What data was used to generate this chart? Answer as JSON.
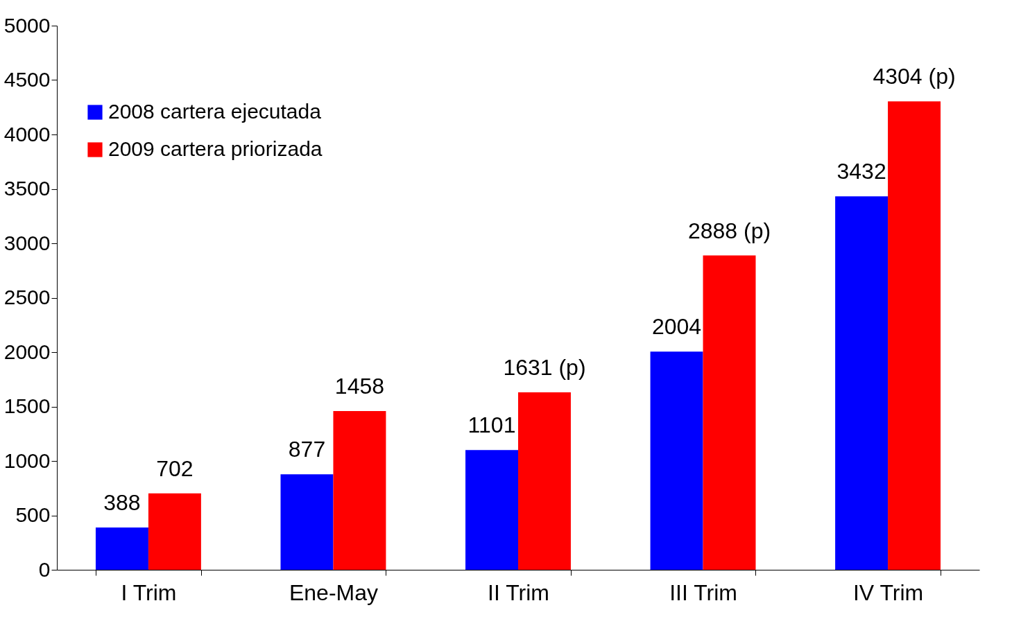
{
  "chart_data": {
    "type": "bar",
    "categories": [
      "I Trim",
      "Ene-May",
      "II Trim",
      "III Trim",
      "IV Trim"
    ],
    "series": [
      {
        "name": "2008 cartera ejecutada",
        "color": "#0000ff",
        "values": [
          388,
          877,
          1101,
          2004,
          3432
        ],
        "value_labels": [
          "388",
          "877",
          "1101",
          "2004",
          "3432"
        ]
      },
      {
        "name": "2009 cartera priorizada",
        "color": "#ff0000",
        "values": [
          702,
          1458,
          1631,
          2888,
          4304
        ],
        "value_labels": [
          "702",
          "1458",
          "1631 (p)",
          "2888  (p)",
          "4304 (p)"
        ]
      }
    ],
    "ylim": [
      0,
      5000
    ],
    "yticks": [
      0,
      500,
      1000,
      1500,
      2000,
      2500,
      3000,
      3500,
      4000,
      4500,
      5000
    ],
    "grid": false,
    "legend": "top left"
  }
}
